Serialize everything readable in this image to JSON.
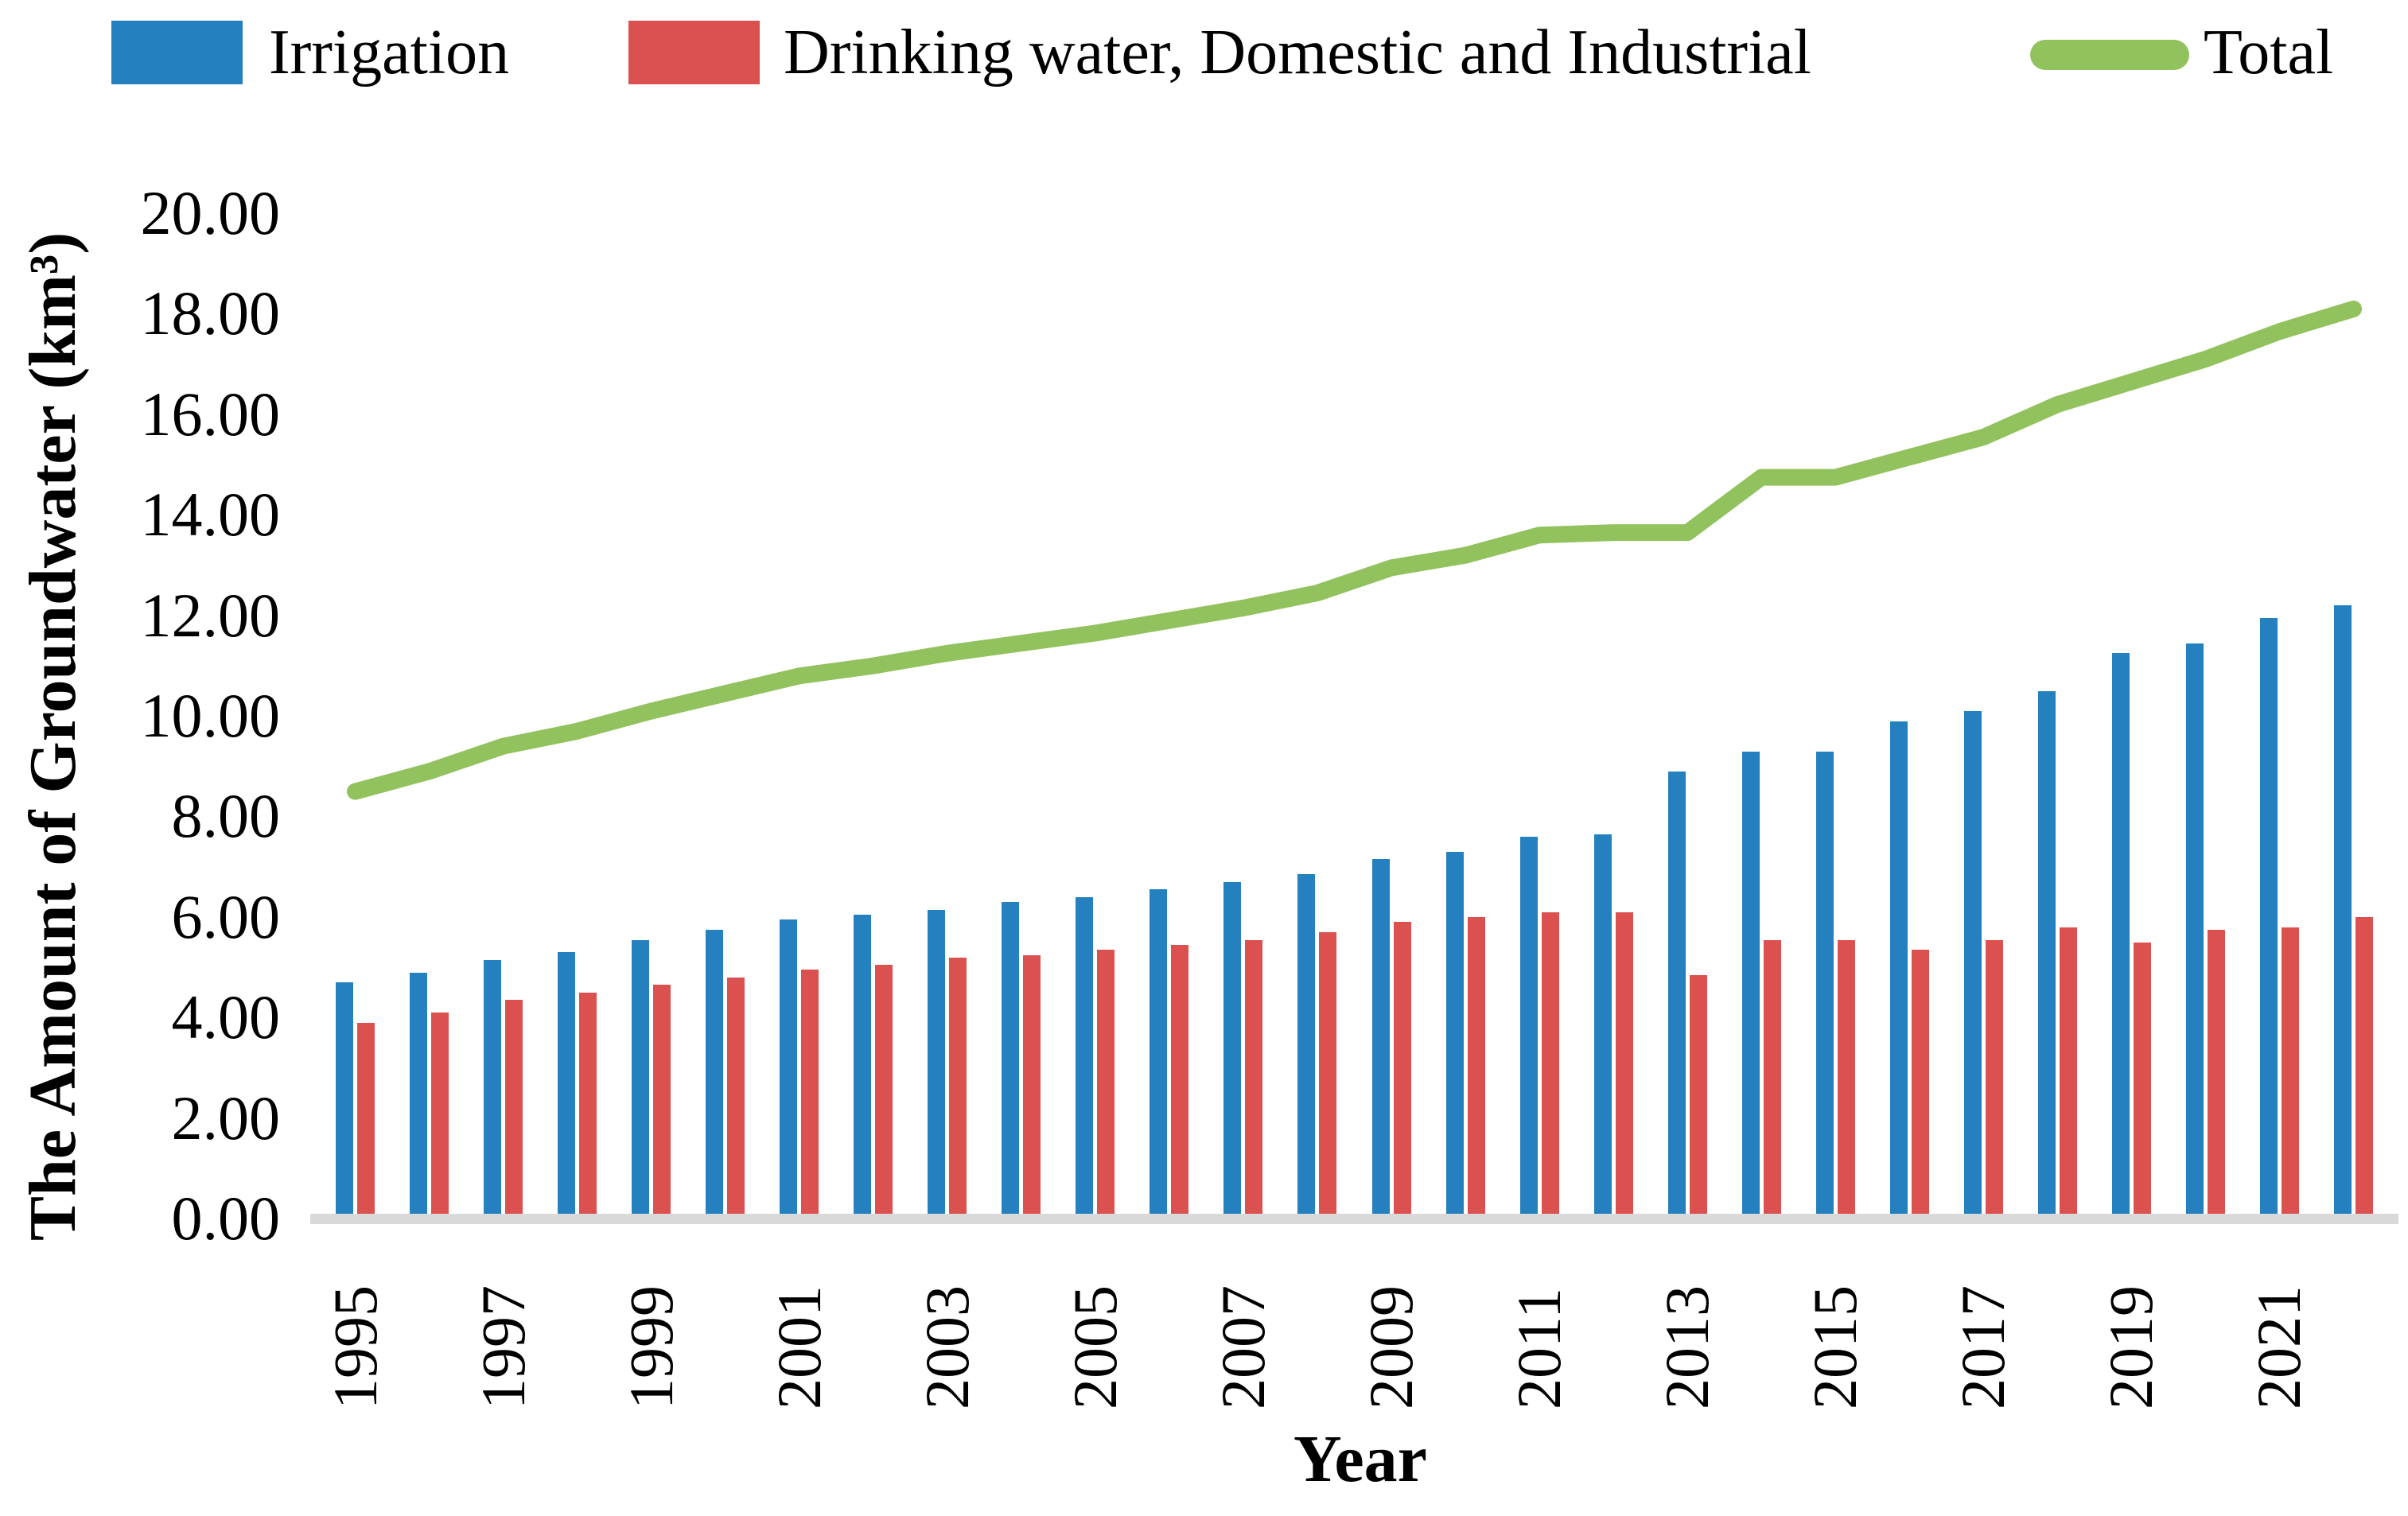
{
  "legend": {
    "items": [
      {
        "label": "Irrigation",
        "color": "#2480BE",
        "swatch": "square"
      },
      {
        "label": "Drinking water, Domestic and Industrial",
        "color": "#DB5150",
        "swatch": "square"
      },
      {
        "label": "Total",
        "color": "#92C25E",
        "swatch": "line"
      }
    ]
  },
  "y_axis": {
    "title": "The Amount of Groundwater (km³)",
    "tick_labels": [
      "0.00",
      "2.00",
      "4.00",
      "6.00",
      "8.00",
      "10.00",
      "12.00",
      "14.00",
      "16.00",
      "18.00",
      "20.00"
    ],
    "min": 0,
    "max": 20,
    "step": 2
  },
  "x_axis": {
    "title": "Year",
    "tick_labels": [
      "1995",
      "1997",
      "1999",
      "2001",
      "2003",
      "2005",
      "2007",
      "2009",
      "2011",
      "2013",
      "2015",
      "2017",
      "2019",
      "2021"
    ]
  },
  "chart_data": {
    "type": "bar+line",
    "title": "",
    "xlabel": "Year",
    "ylabel": "The Amount of Groundwater (km³)",
    "ylim": [
      0,
      20
    ],
    "grid": false,
    "legend_position": "top",
    "categories": [
      "1995",
      "1996",
      "1997",
      "1998",
      "1999",
      "2000",
      "2001",
      "2002",
      "2003",
      "2004",
      "2005",
      "2006",
      "2007",
      "2008",
      "2009",
      "2010",
      "2011",
      "2012",
      "2013",
      "2014",
      "2015",
      "2016",
      "2017",
      "2018",
      "2019",
      "2020",
      "2021",
      "2022"
    ],
    "series": [
      {
        "name": "Irrigation",
        "type": "bar",
        "color": "#2480BE",
        "values": [
          4.6,
          4.8,
          5.05,
          5.2,
          5.45,
          5.65,
          5.85,
          5.95,
          6.05,
          6.2,
          6.3,
          6.45,
          6.6,
          6.75,
          7.05,
          7.2,
          7.5,
          7.55,
          8.8,
          9.2,
          9.2,
          9.8,
          10.0,
          10.4,
          11.15,
          11.35,
          11.85,
          12.1
        ]
      },
      {
        "name": "Drinking water, Domestic and Industrial",
        "type": "bar",
        "color": "#DB5150",
        "values": [
          3.8,
          4.0,
          4.25,
          4.4,
          4.55,
          4.7,
          4.85,
          4.95,
          5.1,
          5.15,
          5.25,
          5.35,
          5.45,
          5.6,
          5.8,
          5.9,
          6.0,
          6.0,
          4.75,
          5.45,
          5.45,
          5.25,
          5.45,
          5.7,
          5.4,
          5.65,
          5.7,
          5.9
        ]
      },
      {
        "name": "Total",
        "type": "line",
        "color": "#92C25E",
        "values": [
          8.4,
          8.8,
          9.3,
          9.6,
          10.0,
          10.35,
          10.7,
          10.9,
          11.15,
          11.35,
          11.55,
          11.8,
          12.05,
          12.35,
          12.85,
          13.1,
          13.5,
          13.55,
          13.55,
          14.65,
          14.65,
          15.05,
          15.45,
          16.1,
          16.55,
          17.0,
          17.55,
          18.0
        ]
      }
    ],
    "colors": {
      "baseline": "#D9D9D9",
      "text": "#000000"
    }
  }
}
